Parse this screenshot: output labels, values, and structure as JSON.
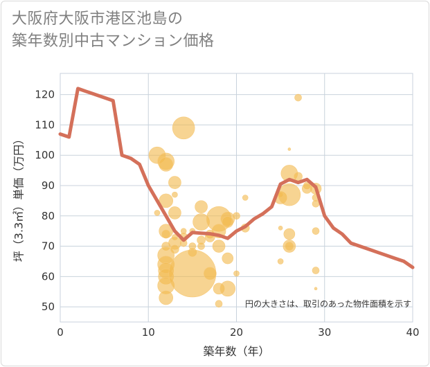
{
  "title_lines": [
    "大阪府大阪市港区池島の",
    "築年数別中古マンション価格"
  ],
  "chart_data": {
    "type": "scatter",
    "xlabel": "築年数（年）",
    "ylabel": "坪（3.3㎡）単価（万円）",
    "xlim": [
      0,
      40
    ],
    "ylim": [
      45,
      127
    ],
    "xticks": [
      0,
      10,
      20,
      30,
      40
    ],
    "yticks": [
      50,
      60,
      70,
      80,
      90,
      100,
      110,
      120
    ],
    "grid": true,
    "annotation": "円の大きさは、取引のあった物件面積を示す",
    "colors": {
      "bubble": "#f2b94f",
      "line": "#d4705a",
      "grid": "#c8d2dc"
    },
    "bubbles": [
      {
        "x": 11,
        "y": 100,
        "r": 12
      },
      {
        "x": 11,
        "y": 81,
        "r": 4
      },
      {
        "x": 12,
        "y": 98,
        "r": 12
      },
      {
        "x": 12,
        "y": 97,
        "r": 10
      },
      {
        "x": 12,
        "y": 85,
        "r": 10
      },
      {
        "x": 12,
        "y": 75,
        "r": 10
      },
      {
        "x": 12,
        "y": 74,
        "r": 6
      },
      {
        "x": 12,
        "y": 70,
        "r": 6
      },
      {
        "x": 12,
        "y": 67,
        "r": 12
      },
      {
        "x": 12,
        "y": 64,
        "r": 12
      },
      {
        "x": 12,
        "y": 62,
        "r": 11
      },
      {
        "x": 12,
        "y": 60,
        "r": 11
      },
      {
        "x": 12,
        "y": 57,
        "r": 12
      },
      {
        "x": 12,
        "y": 53,
        "r": 10
      },
      {
        "x": 13,
        "y": 91,
        "r": 9
      },
      {
        "x": 13,
        "y": 87,
        "r": 4
      },
      {
        "x": 13,
        "y": 81,
        "r": 9
      },
      {
        "x": 13,
        "y": 73,
        "r": 4
      },
      {
        "x": 13,
        "y": 71,
        "r": 9
      },
      {
        "x": 13,
        "y": 69,
        "r": 6
      },
      {
        "x": 14,
        "y": 109,
        "r": 16
      },
      {
        "x": 14,
        "y": 75,
        "r": 4
      },
      {
        "x": 14,
        "y": 73,
        "r": 6
      },
      {
        "x": 14,
        "y": 71,
        "r": 5
      },
      {
        "x": 15,
        "y": 75,
        "r": 4
      },
      {
        "x": 15,
        "y": 70,
        "r": 5
      },
      {
        "x": 15,
        "y": 68,
        "r": 6
      },
      {
        "x": 15,
        "y": 61,
        "r": 34
      },
      {
        "x": 16,
        "y": 83,
        "r": 9
      },
      {
        "x": 16,
        "y": 78,
        "r": 12
      },
      {
        "x": 16,
        "y": 72,
        "r": 6
      },
      {
        "x": 16,
        "y": 70,
        "r": 5
      },
      {
        "x": 17,
        "y": 74,
        "r": 6
      },
      {
        "x": 17,
        "y": 73,
        "r": 7
      },
      {
        "x": 17,
        "y": 61,
        "r": 9
      },
      {
        "x": 18,
        "y": 79,
        "r": 18
      },
      {
        "x": 18,
        "y": 75,
        "r": 10
      },
      {
        "x": 18,
        "y": 70,
        "r": 9
      },
      {
        "x": 18,
        "y": 56,
        "r": 8
      },
      {
        "x": 18,
        "y": 51,
        "r": 5
      },
      {
        "x": 19,
        "y": 79,
        "r": 10
      },
      {
        "x": 19,
        "y": 78,
        "r": 8
      },
      {
        "x": 19,
        "y": 66,
        "r": 8
      },
      {
        "x": 19,
        "y": 56,
        "r": 11
      },
      {
        "x": 20,
        "y": 80,
        "r": 5
      },
      {
        "x": 20,
        "y": 61,
        "r": 4
      },
      {
        "x": 21,
        "y": 86,
        "r": 4
      },
      {
        "x": 21,
        "y": 76,
        "r": 6
      },
      {
        "x": 25,
        "y": 87,
        "r": 3
      },
      {
        "x": 25,
        "y": 86,
        "r": 9
      },
      {
        "x": 25,
        "y": 76,
        "r": 3
      },
      {
        "x": 25,
        "y": 65,
        "r": 4
      },
      {
        "x": 26,
        "y": 102,
        "r": 2
      },
      {
        "x": 26,
        "y": 94,
        "r": 12
      },
      {
        "x": 26,
        "y": 87,
        "r": 16
      },
      {
        "x": 26,
        "y": 74,
        "r": 8
      },
      {
        "x": 26,
        "y": 70,
        "r": 9
      },
      {
        "x": 26,
        "y": 70,
        "r": 6
      },
      {
        "x": 27,
        "y": 119,
        "r": 5
      },
      {
        "x": 27,
        "y": 93,
        "r": 6
      },
      {
        "x": 28,
        "y": 90,
        "r": 5
      },
      {
        "x": 28,
        "y": 89,
        "r": 7
      },
      {
        "x": 29,
        "y": 89,
        "r": 8
      },
      {
        "x": 29,
        "y": 86,
        "r": 5
      },
      {
        "x": 29,
        "y": 84,
        "r": 5
      },
      {
        "x": 29,
        "y": 75,
        "r": 5
      },
      {
        "x": 29,
        "y": 62,
        "r": 5
      },
      {
        "x": 29,
        "y": 56,
        "r": 2
      }
    ],
    "line": {
      "x": [
        0,
        1,
        2,
        3,
        4,
        5,
        6,
        7,
        8,
        9,
        10,
        11,
        12,
        13,
        14,
        15,
        16,
        17,
        18,
        19,
        20,
        21,
        22,
        23,
        24,
        25,
        26,
        27,
        28,
        29,
        30,
        31,
        32,
        33,
        34,
        35,
        36,
        37,
        38,
        39,
        40
      ],
      "y": [
        107,
        106,
        122,
        121,
        120,
        119,
        118,
        100,
        99,
        97,
        90,
        85,
        80,
        75,
        72,
        74.5,
        74.3,
        74.1,
        73.6,
        72.6,
        75,
        76.5,
        79,
        80.7,
        83,
        90.5,
        92,
        91,
        92,
        89.5,
        80,
        76,
        74,
        71,
        70,
        69,
        68,
        67,
        66,
        65,
        63
      ]
    }
  }
}
